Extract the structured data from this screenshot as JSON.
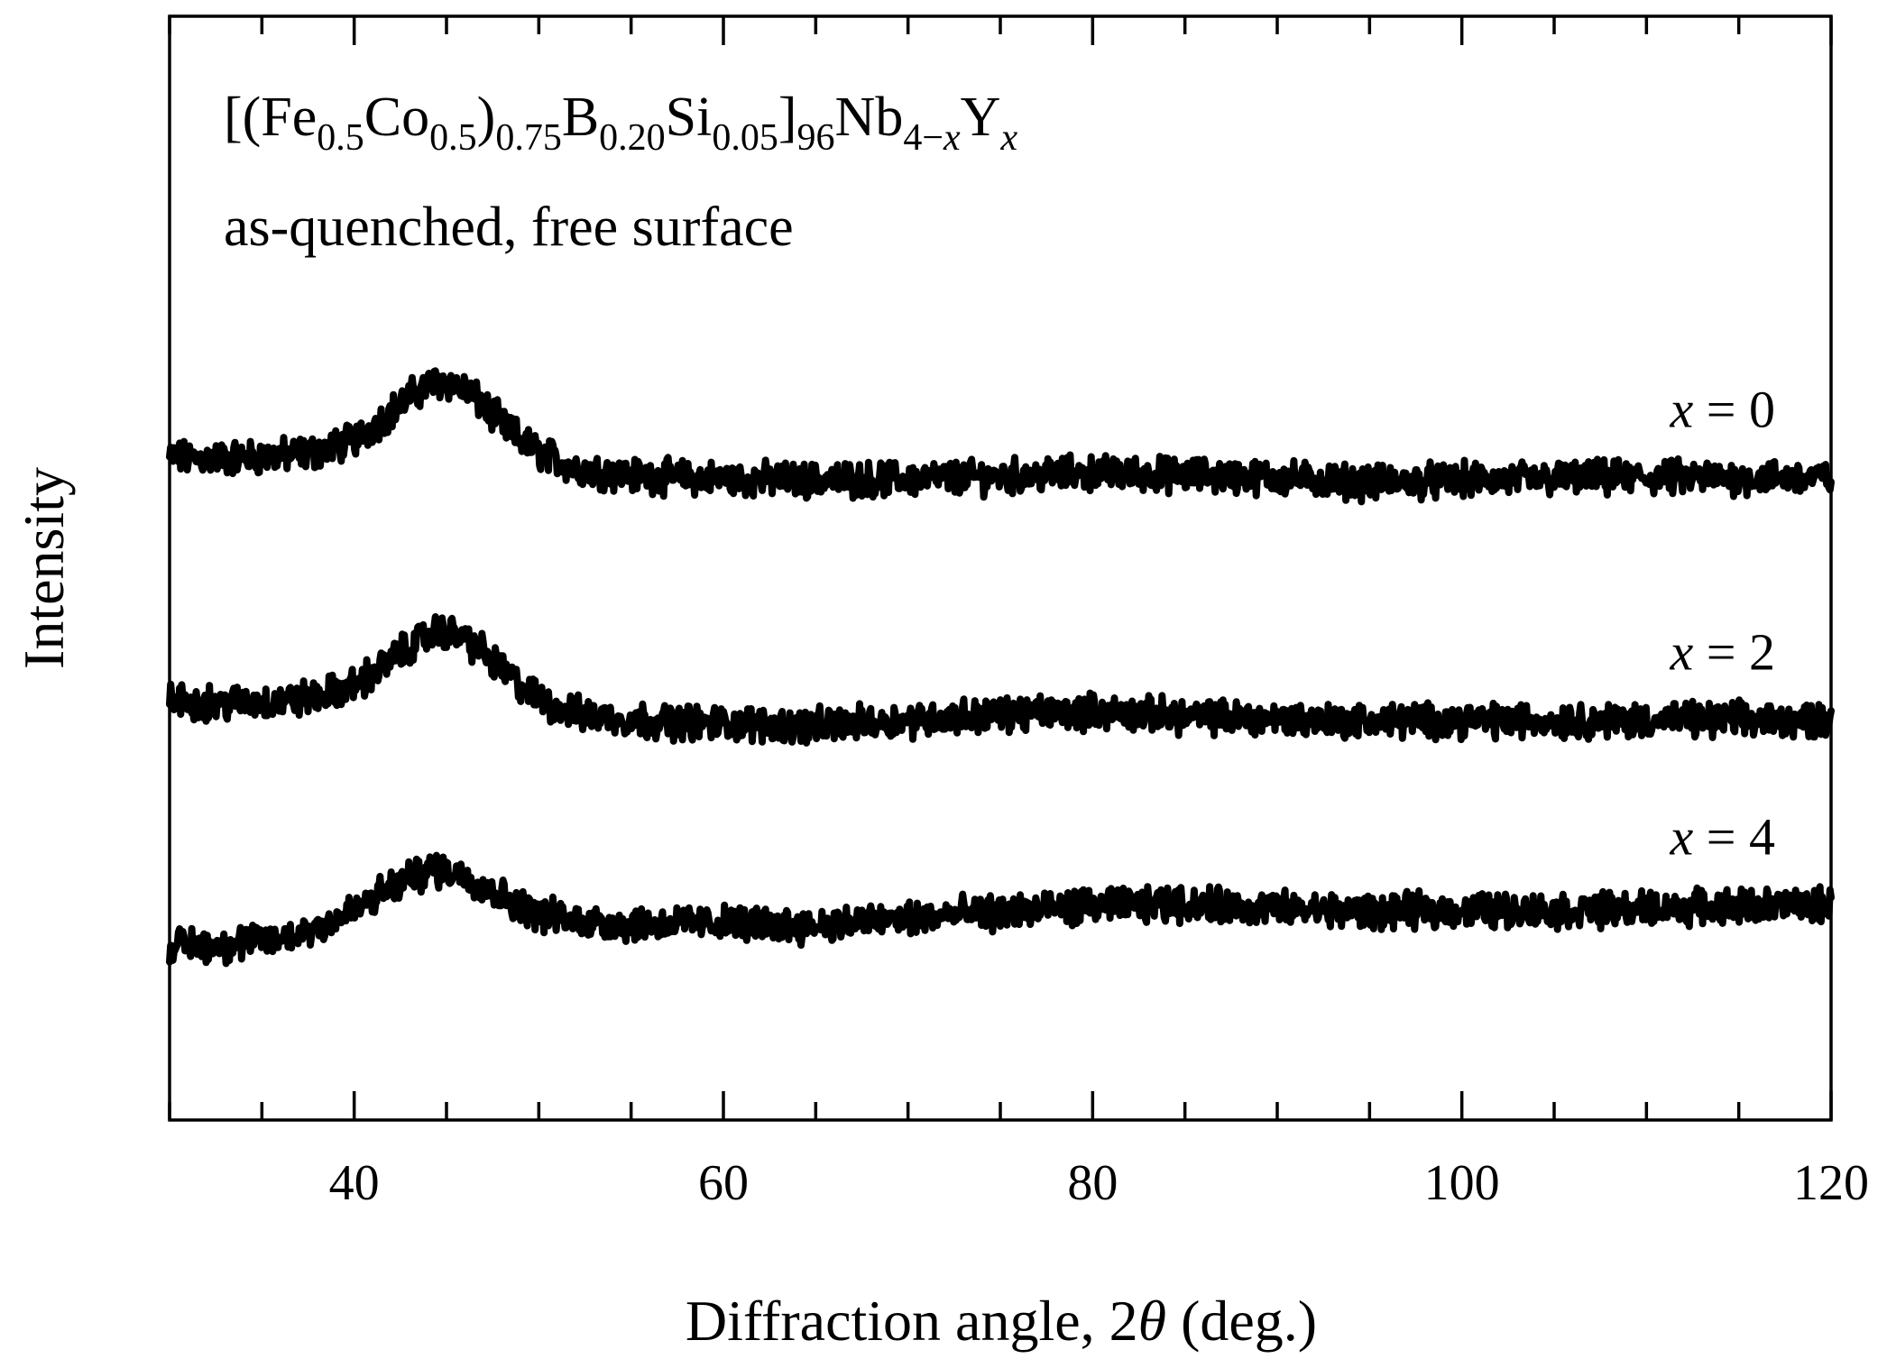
{
  "chart_data": {
    "type": "line",
    "title": "",
    "xlabel": "Diffraction angle, 2θ (deg.)",
    "xlabel_parts": {
      "prefix": "Diffraction angle, 2",
      "symbol": "θ",
      "suffix": " (deg.)"
    },
    "ylabel": "Intensity",
    "xlim": [
      30,
      120
    ],
    "x_ticks": [
      40,
      60,
      80,
      100,
      120
    ],
    "x_minor_step": 5,
    "y_ticks_shown": false,
    "grid": false,
    "legend": "none",
    "annotation": {
      "formula_parts": [
        {
          "t": "[(Fe",
          "s": "n"
        },
        {
          "t": "0.5",
          "s": "sub"
        },
        {
          "t": "Co",
          "s": "n"
        },
        {
          "t": "0.5",
          "s": "sub"
        },
        {
          "t": ")",
          "s": "n"
        },
        {
          "t": "0.75",
          "s": "sub"
        },
        {
          "t": "B",
          "s": "n"
        },
        {
          "t": "0.20",
          "s": "sub"
        },
        {
          "t": "Si",
          "s": "n"
        },
        {
          "t": "0.05",
          "s": "sub"
        },
        {
          "t": "]",
          "s": "n"
        },
        {
          "t": "96",
          "s": "sub"
        },
        {
          "t": "Nb",
          "s": "n"
        },
        {
          "t": "4−",
          "s": "sub"
        },
        {
          "t": "x",
          "s": "subi"
        },
        {
          "t": "Y",
          "s": "n"
        },
        {
          "t": "x",
          "s": "subi"
        }
      ],
      "condition": "as-quenched, free surface"
    },
    "series": [
      {
        "name": "x = 0",
        "label_var": "x",
        "label_rest": " = 0",
        "x": [
          30,
          33,
          36,
          38,
          40,
          41,
          42,
          43,
          44,
          45,
          46,
          47,
          48,
          49,
          50,
          52,
          55,
          58,
          60,
          65,
          70,
          75,
          80,
          85,
          90,
          95,
          100,
          105,
          110,
          115,
          120
        ],
        "y": [
          4.0,
          4.0,
          4.02,
          4.05,
          4.15,
          4.26,
          4.38,
          4.5,
          4.6,
          4.63,
          4.56,
          4.43,
          4.28,
          4.15,
          4.05,
          3.92,
          3.86,
          3.84,
          3.83,
          3.82,
          3.83,
          3.85,
          3.88,
          3.86,
          3.84,
          3.8,
          3.82,
          3.83,
          3.84,
          3.84,
          3.84
        ]
      },
      {
        "name": "x = 2",
        "label_var": "x",
        "label_rest": " = 2",
        "x": [
          30,
          33,
          36,
          38,
          40,
          41,
          42,
          43,
          44,
          45,
          46,
          47,
          48,
          49,
          50,
          52,
          55,
          58,
          60,
          65,
          70,
          75,
          80,
          85,
          90,
          95,
          100,
          105,
          110,
          115,
          120
        ],
        "y": [
          2.0,
          1.99,
          2.0,
          2.04,
          2.13,
          2.23,
          2.34,
          2.45,
          2.55,
          2.58,
          2.52,
          2.4,
          2.26,
          2.13,
          2.02,
          1.9,
          1.85,
          1.83,
          1.82,
          1.8,
          1.85,
          1.9,
          1.92,
          1.88,
          1.86,
          1.84,
          1.85,
          1.84,
          1.85,
          1.85,
          1.85
        ]
      },
      {
        "name": "x = 4",
        "label_var": "x",
        "label_rest": " = 4",
        "x": [
          30,
          33,
          36,
          38,
          40,
          41,
          42,
          43,
          44,
          45,
          46,
          47,
          48,
          49,
          50,
          52,
          55,
          58,
          60,
          65,
          70,
          75,
          80,
          85,
          90,
          95,
          100,
          105,
          110,
          115,
          120
        ],
        "y": [
          0.0,
          0.0,
          0.05,
          0.15,
          0.28,
          0.38,
          0.47,
          0.55,
          0.61,
          0.62,
          0.57,
          0.49,
          0.4,
          0.32,
          0.26,
          0.2,
          0.17,
          0.18,
          0.18,
          0.16,
          0.22,
          0.27,
          0.32,
          0.34,
          0.3,
          0.27,
          0.29,
          0.28,
          0.3,
          0.32,
          0.33
        ]
      }
    ]
  }
}
